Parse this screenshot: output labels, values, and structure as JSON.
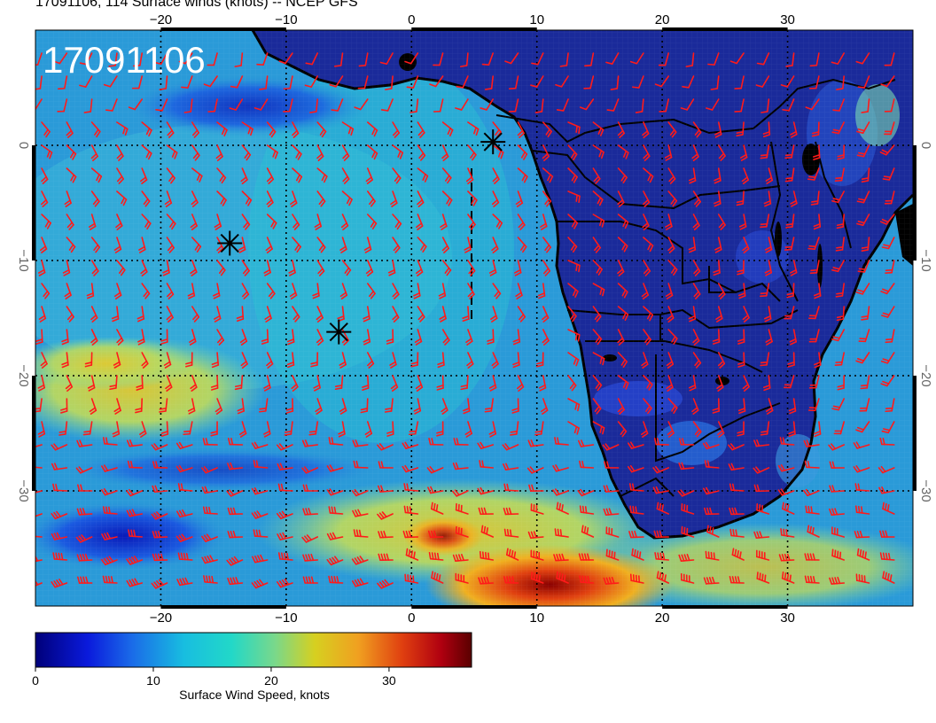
{
  "header": {
    "title": "17091106, 114 Surface winds (knots) -- NCEP GFS",
    "stamp": "17091106"
  },
  "map": {
    "projection": "cylindrical",
    "lon_range": [
      -30,
      40
    ],
    "lat_range": [
      -40,
      10
    ],
    "top_lon_labels": [
      "−20",
      "−10",
      "0",
      "10",
      "20",
      "30"
    ],
    "bottom_lon_labels": [
      "−20",
      "−10",
      "0",
      "10",
      "20",
      "30"
    ],
    "left_lat_labels": [
      "0",
      "−10",
      "−20",
      "−30"
    ],
    "right_lat_labels": [
      "0",
      "−10",
      "−20",
      "−30"
    ],
    "land_color": "#1a2a9a",
    "ocean_color": "#2a9ad8",
    "barb_color": "#ff1a1a",
    "markers": [
      {
        "lon": 6.5,
        "lat": 0.3
      },
      {
        "lon": -14.5,
        "lat": -8.5
      },
      {
        "lon": -5.8,
        "lat": -16.2
      }
    ]
  },
  "colorbar": {
    "label": "Surface Wind Speed, knots",
    "tick_labels": [
      "0",
      "10",
      "20",
      "30"
    ],
    "range": [
      0,
      37
    ],
    "colors": [
      "#00007a",
      "#0a1adc",
      "#1a6ae8",
      "#18bde0",
      "#22d8c8",
      "#7ad88a",
      "#d6d020",
      "#f0a020",
      "#e04010",
      "#b00010",
      "#5a0000"
    ]
  }
}
